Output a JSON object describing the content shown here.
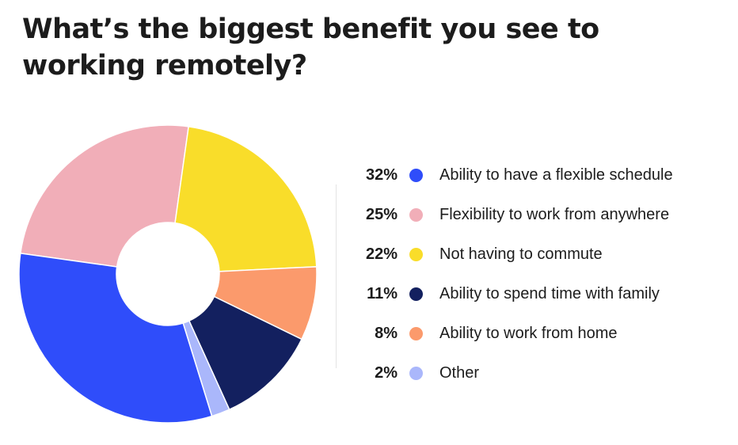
{
  "title": "What’s the biggest benefit you see to working remotely?",
  "chart_data": {
    "type": "pie",
    "donut": true,
    "slices": [
      {
        "label": "Ability to have a flexible schedule",
        "value": 32,
        "value_label": "32%",
        "color": "#2f4dfa"
      },
      {
        "label": "Flexibility to work from anywhere",
        "value": 25,
        "value_label": "25%",
        "color": "#f1aeb8"
      },
      {
        "label": "Not having to commute",
        "value": 22,
        "value_label": "22%",
        "color": "#f9dd2a"
      },
      {
        "label": "Ability to spend time with family",
        "value": 11,
        "value_label": "11%",
        "color": "#13205f"
      },
      {
        "label": "Ability to work from home",
        "value": 8,
        "value_label": "8%",
        "color": "#fb9a6c"
      },
      {
        "label": "Other",
        "value": 2,
        "value_label": "2%",
        "color": "#aab7fb"
      }
    ],
    "legend_position": "right"
  }
}
